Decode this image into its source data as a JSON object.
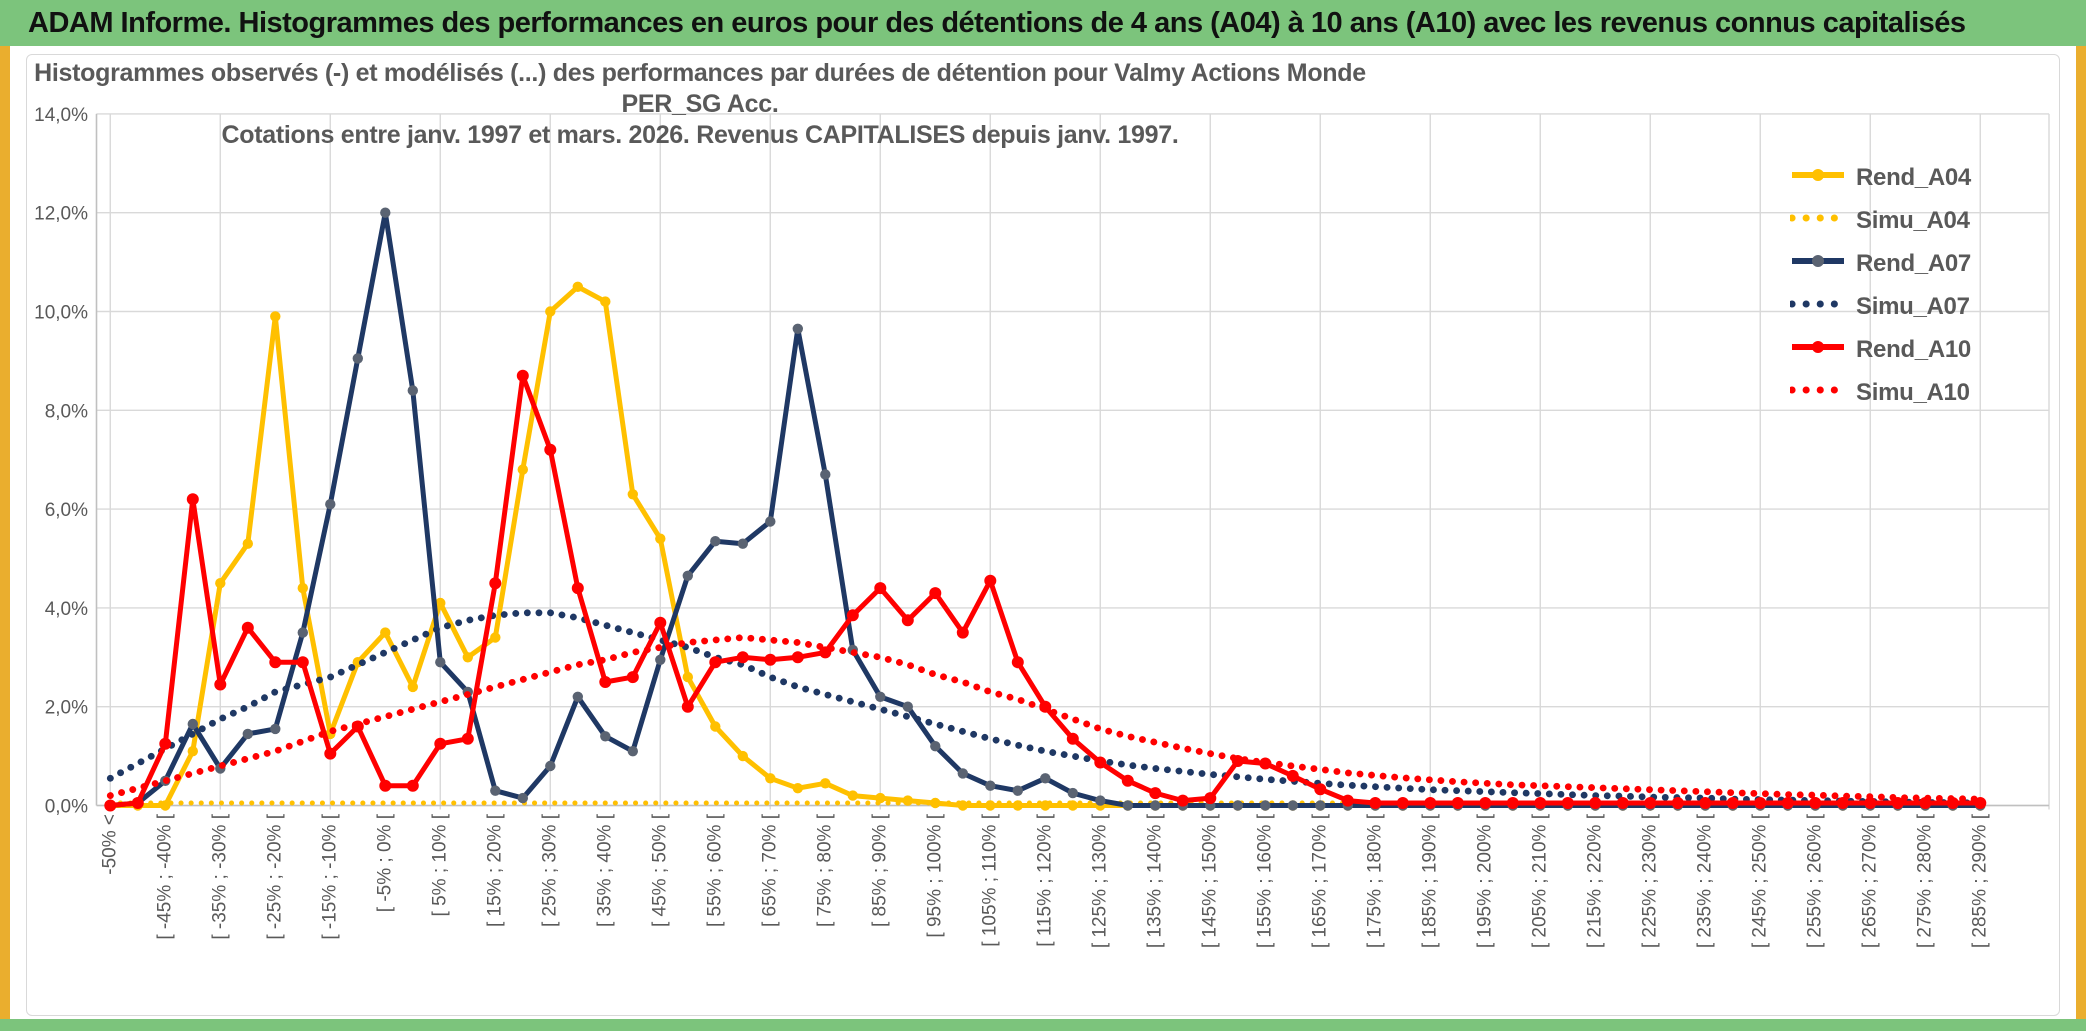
{
  "header": {
    "title": "ADAM Informe. Histogrammes des performances en euros pour des détentions de 4 ans (A04) à 10 ans (A10) avec les revenus connus capitalisés"
  },
  "chart": {
    "title_line1": "Histogrammes observés (-) et modélisés (...) des performances par durées de détention pour Valmy Actions Monde PER_SG Acc.",
    "title_line2": "Cotations entre janv. 1997 et mars. 2026. Revenus CAPITALISES depuis janv. 1997."
  },
  "colors": {
    "gold": "#FFC000",
    "navy": "#1F3864",
    "navy_marker": "#5A6372",
    "red": "#FF0000",
    "text_gray": "#595959",
    "grid": "#D9D9D9",
    "axis": "#C0C0C0",
    "header_green": "#7CC47C",
    "side_gold": "#EAAE2E"
  },
  "chart_data": {
    "type": "line",
    "title": "Histogrammes observés (-) et modélisés (...) des performances par durées de détention pour Valmy Actions Monde PER_SG Acc. Cotations entre janv. 1997 et mars. 2026. Revenus CAPITALISES depuis janv. 1997.",
    "xlabel": "",
    "ylabel": "",
    "ylim": [
      0,
      14
    ],
    "grid": true,
    "legend_position": "right-top",
    "ytick_labels": [
      "0,0%",
      "2,0%",
      "4,0%",
      "6,0%",
      "8,0%",
      "10,0%",
      "12,0%",
      "14,0%"
    ],
    "categories": [
      "-50% <",
      "",
      "[ -45% ; -40% [",
      "",
      "[ -35% ; -30% [",
      "",
      "[ -25% ; -20% [",
      "",
      "[ -15% ; -10% [",
      "",
      "[ -5% ; 0% [",
      "",
      "[ 5% ; 10% [",
      "",
      "[ 15% ; 20% [",
      "",
      "[ 25% ; 30% [",
      "",
      "[ 35% ; 40% [",
      "",
      "[ 45% ; 50% [",
      "",
      "[ 55% ; 60% [",
      "",
      "[ 65% ; 70% [",
      "",
      "[ 75% ; 80% [",
      "",
      "[ 85% ; 90% [",
      "",
      "[ 95% ; 100% [",
      "",
      "[ 105% ; 110% [",
      "",
      "[ 115% ; 120% [",
      "",
      "[ 125% ; 130% [",
      "",
      "[ 135% ; 140% [",
      "",
      "[ 145% ; 150% [",
      "",
      "[ 155% ; 160% [",
      "",
      "[ 165% ; 170% [",
      "",
      "[ 175% ; 180% [",
      "",
      "[ 185% ; 190% [",
      "",
      "[ 195% ; 200% [",
      "",
      "[ 205% ; 210% [",
      "",
      "[ 215% ; 220% [",
      "",
      "[ 225% ; 230% [",
      "",
      "[ 235% ; 240% [",
      "",
      "[ 245% ; 250% [",
      "",
      "[ 255% ; 260% [",
      "",
      "[ 265% ; 270% [",
      "",
      "[ 275% ; 280% [",
      "",
      "[ 285% ; 290% ["
    ],
    "series": [
      {
        "name": "Rend_A04",
        "style": "solid",
        "color": "#FFC000",
        "marker": "#FFC000",
        "values": [
          0,
          0,
          0,
          1.1,
          4.5,
          5.3,
          9.9,
          4.4,
          1.45,
          2.9,
          3.5,
          2.4,
          4.1,
          3.0,
          3.4,
          6.8,
          10.0,
          10.5,
          10.2,
          6.3,
          5.4,
          2.6,
          1.6,
          1.0,
          0.55,
          0.35,
          0.45,
          0.2,
          0.15,
          0.1,
          0.05,
          0,
          0,
          0,
          0,
          0,
          0,
          0,
          0,
          0,
          0,
          0,
          0,
          0,
          0,
          0,
          0,
          0,
          0,
          0,
          0,
          0,
          0,
          0,
          0,
          0,
          0,
          0,
          0,
          0,
          0,
          0,
          0,
          0,
          0,
          0,
          0,
          0,
          0
        ]
      },
      {
        "name": "Simu_A04",
        "style": "dotted",
        "color": "#FFC000",
        "values": [
          0.05,
          0.05,
          0.05,
          0.05,
          0.05,
          0.05,
          0.05,
          0.05,
          0.05,
          0.05,
          0.05,
          0.05,
          0.05,
          0.05,
          0.05,
          0.05,
          0.05,
          0.05,
          0.05,
          0.05,
          0.05,
          0.05,
          0.05,
          0.05,
          0.05,
          0.05,
          0.05,
          0.05,
          0.05,
          0.05,
          0.05,
          0.05,
          0.05,
          0.05,
          0.05,
          0.05,
          0.05,
          0.05,
          0.05,
          0.05,
          0.05,
          0.05,
          0.05,
          0.05,
          0.05,
          0.05,
          0.05,
          0.05,
          0.05,
          0.05,
          0.05,
          0.05,
          0.05,
          0.05,
          0.05,
          0.05,
          0.05,
          0.05,
          0.05,
          0.05,
          0.05,
          0.05,
          0.05,
          0.05,
          0.05,
          0.05,
          0.05,
          0.05,
          0.05
        ]
      },
      {
        "name": "Rend_A07",
        "style": "solid",
        "color": "#1F3864",
        "marker": "#5A6372",
        "values": [
          0,
          0.05,
          0.5,
          1.65,
          0.75,
          1.45,
          1.55,
          3.5,
          6.1,
          9.05,
          12.0,
          8.4,
          2.9,
          2.3,
          0.3,
          0.15,
          0.8,
          2.2,
          1.4,
          1.1,
          2.95,
          4.65,
          5.35,
          5.3,
          5.75,
          9.65,
          6.7,
          3.15,
          2.2,
          2.0,
          1.2,
          0.65,
          0.4,
          0.3,
          0.55,
          0.25,
          0.1,
          0,
          0,
          0,
          0,
          0,
          0,
          0,
          0,
          0,
          0,
          0,
          0,
          0,
          0,
          0,
          0,
          0,
          0,
          0,
          0,
          0,
          0,
          0,
          0,
          0,
          0,
          0,
          0,
          0,
          0,
          0,
          0
        ]
      },
      {
        "name": "Simu_A07",
        "style": "dotted",
        "color": "#1F3864",
        "values": [
          0.55,
          0.85,
          1.15,
          1.45,
          1.75,
          2.0,
          2.3,
          2.45,
          2.6,
          2.85,
          3.1,
          3.35,
          3.6,
          3.75,
          3.85,
          3.9,
          3.9,
          3.8,
          3.65,
          3.5,
          3.35,
          3.2,
          3.0,
          2.85,
          2.6,
          2.4,
          2.25,
          2.1,
          1.95,
          1.8,
          1.65,
          1.5,
          1.35,
          1.22,
          1.1,
          1.0,
          0.9,
          0.82,
          0.75,
          0.69,
          0.63,
          0.58,
          0.53,
          0.49,
          0.45,
          0.41,
          0.38,
          0.35,
          0.32,
          0.3,
          0.28,
          0.26,
          0.24,
          0.22,
          0.2,
          0.19,
          0.17,
          0.16,
          0.15,
          0.13,
          0.12,
          0.11,
          0.1,
          0.09,
          0.08,
          0.07,
          0.06,
          0.06,
          0.05
        ]
      },
      {
        "name": "Rend_A10",
        "style": "solid",
        "color": "#FF0000",
        "marker": "#FF0000",
        "values": [
          0,
          0.05,
          1.25,
          6.2,
          2.45,
          3.6,
          2.9,
          2.9,
          1.05,
          1.6,
          0.4,
          0.4,
          1.25,
          1.35,
          4.5,
          8.7,
          7.2,
          4.4,
          2.5,
          2.6,
          3.7,
          2.0,
          2.9,
          3.0,
          2.95,
          3.0,
          3.1,
          3.85,
          4.4,
          3.75,
          4.3,
          3.5,
          4.55,
          2.9,
          2.0,
          1.35,
          0.87,
          0.5,
          0.25,
          0.1,
          0.15,
          0.9,
          0.85,
          0.6,
          0.33,
          0.1,
          0.05,
          0.05,
          0.05,
          0.05,
          0.05,
          0.05,
          0.05,
          0.05,
          0.05,
          0.05,
          0.05,
          0.05,
          0.05,
          0.05,
          0.05,
          0.05,
          0.05,
          0.05,
          0.05,
          0.05,
          0.05,
          0.05,
          0.05
        ]
      },
      {
        "name": "Simu_A10",
        "style": "dotted",
        "color": "#FF0000",
        "values": [
          0.2,
          0.35,
          0.5,
          0.65,
          0.8,
          0.95,
          1.1,
          1.3,
          1.5,
          1.65,
          1.8,
          1.95,
          2.1,
          2.25,
          2.4,
          2.55,
          2.7,
          2.85,
          2.95,
          3.1,
          3.2,
          3.3,
          3.35,
          3.4,
          3.35,
          3.3,
          3.2,
          3.1,
          3.0,
          2.85,
          2.65,
          2.5,
          2.3,
          2.15,
          1.95,
          1.75,
          1.55,
          1.4,
          1.28,
          1.16,
          1.05,
          0.95,
          0.87,
          0.8,
          0.73,
          0.66,
          0.61,
          0.56,
          0.52,
          0.48,
          0.45,
          0.42,
          0.4,
          0.38,
          0.36,
          0.34,
          0.32,
          0.3,
          0.28,
          0.26,
          0.24,
          0.22,
          0.21,
          0.19,
          0.18,
          0.16,
          0.15,
          0.14,
          0.13
        ]
      }
    ]
  },
  "legend": {
    "items": [
      "Rend_A04",
      "Simu_A04",
      "Rend_A07",
      "Simu_A07",
      "Rend_A10",
      "Simu_A10"
    ]
  }
}
